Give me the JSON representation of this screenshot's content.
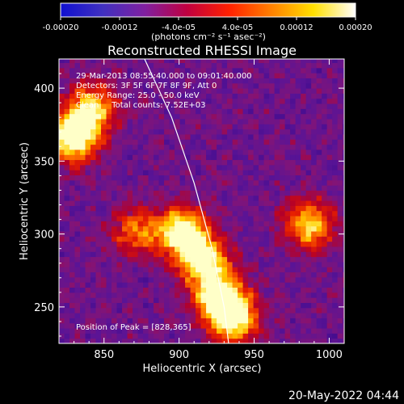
{
  "colorbar": {
    "stops": [
      "#1010d0",
      "#4030c0",
      "#8020a0",
      "#c00040",
      "#ff2000",
      "#ff8000",
      "#ffe000",
      "#ffffff"
    ],
    "tick_labels": [
      "-0.00020",
      "-0.00012",
      "-4.0e-05",
      "4.0e-05",
      "0.00012",
      "0.00020"
    ],
    "tick_values": [
      -0.0002,
      -0.00012,
      -4e-05,
      4e-05,
      0.00012,
      0.0002
    ],
    "range": [
      -0.0002,
      0.0002
    ],
    "units_label": "(photons cm⁻² s⁻¹ asec⁻²)"
  },
  "chart_data": {
    "type": "heatmap",
    "title": "Reconstructed RHESSI Image",
    "xlabel": "Heliocentric X (arcsec)",
    "ylabel": "Heliocentric Y (arcsec)",
    "xlim": [
      820,
      1010
    ],
    "ylim": [
      225,
      420
    ],
    "xticks": [
      850,
      900,
      950,
      1000
    ],
    "yticks": [
      250,
      300,
      350,
      400
    ],
    "annotations": {
      "time_range": "29-Mar-2013 08:55:40.000 to 09:01:40.000",
      "detectors": "Detectors: 3F 5F 6F 7F 8F 9F, Att 0",
      "energy_range": "Energy Range: 25.0 - 50.0 keV",
      "method": "Clean     Total counts: 7.52E+03",
      "peak": "Position of Peak = [828,365]"
    },
    "peak": {
      "x": 828,
      "y": 365
    },
    "limb_curve": [
      [
        877,
        420
      ],
      [
        895,
        380
      ],
      [
        910,
        335
      ],
      [
        922,
        290
      ],
      [
        930,
        250
      ],
      [
        933,
        225
      ]
    ],
    "hot_regions": [
      {
        "x": 828,
        "y": 365,
        "intensity": 1.0
      },
      {
        "x": 840,
        "y": 385,
        "intensity": 0.7
      },
      {
        "x": 900,
        "y": 300,
        "intensity": 0.9
      },
      {
        "x": 915,
        "y": 280,
        "intensity": 0.85
      },
      {
        "x": 925,
        "y": 255,
        "intensity": 0.9
      },
      {
        "x": 935,
        "y": 240,
        "intensity": 0.8
      },
      {
        "x": 985,
        "y": 305,
        "intensity": 0.7
      },
      {
        "x": 870,
        "y": 300,
        "intensity": 0.5
      }
    ]
  },
  "footer": {
    "date": "20-May-2022 04:44"
  }
}
